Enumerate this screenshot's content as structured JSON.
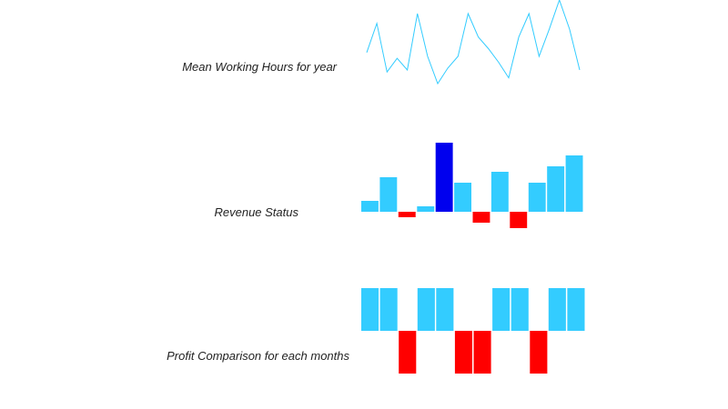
{
  "chart_data": [
    {
      "type": "line",
      "title": "Mean Working Hours for year",
      "values": [
        40,
        55,
        30,
        37,
        31,
        60,
        38,
        24,
        32,
        38,
        60,
        48,
        42,
        35,
        27,
        48,
        60,
        38,
        52,
        67,
        52,
        31
      ],
      "color": "#33ccff"
    },
    {
      "type": "bar",
      "title": "Revenue Status",
      "values": [
        3,
        9.5,
        -1.5,
        1.5,
        19,
        8,
        -3,
        11,
        -4.5,
        8,
        12.5,
        15.5
      ],
      "colors": {
        "positive": "#33ccff",
        "negative": "#ff0000",
        "highest": "#0000ee"
      }
    },
    {
      "type": "bar",
      "title": "Profit Comparison for each months",
      "values": [
        1,
        1,
        -1,
        1,
        1,
        -1,
        -1,
        1,
        1,
        -1,
        1,
        1
      ],
      "colors": {
        "positive": "#33ccff",
        "negative": "#ff0000"
      }
    }
  ]
}
